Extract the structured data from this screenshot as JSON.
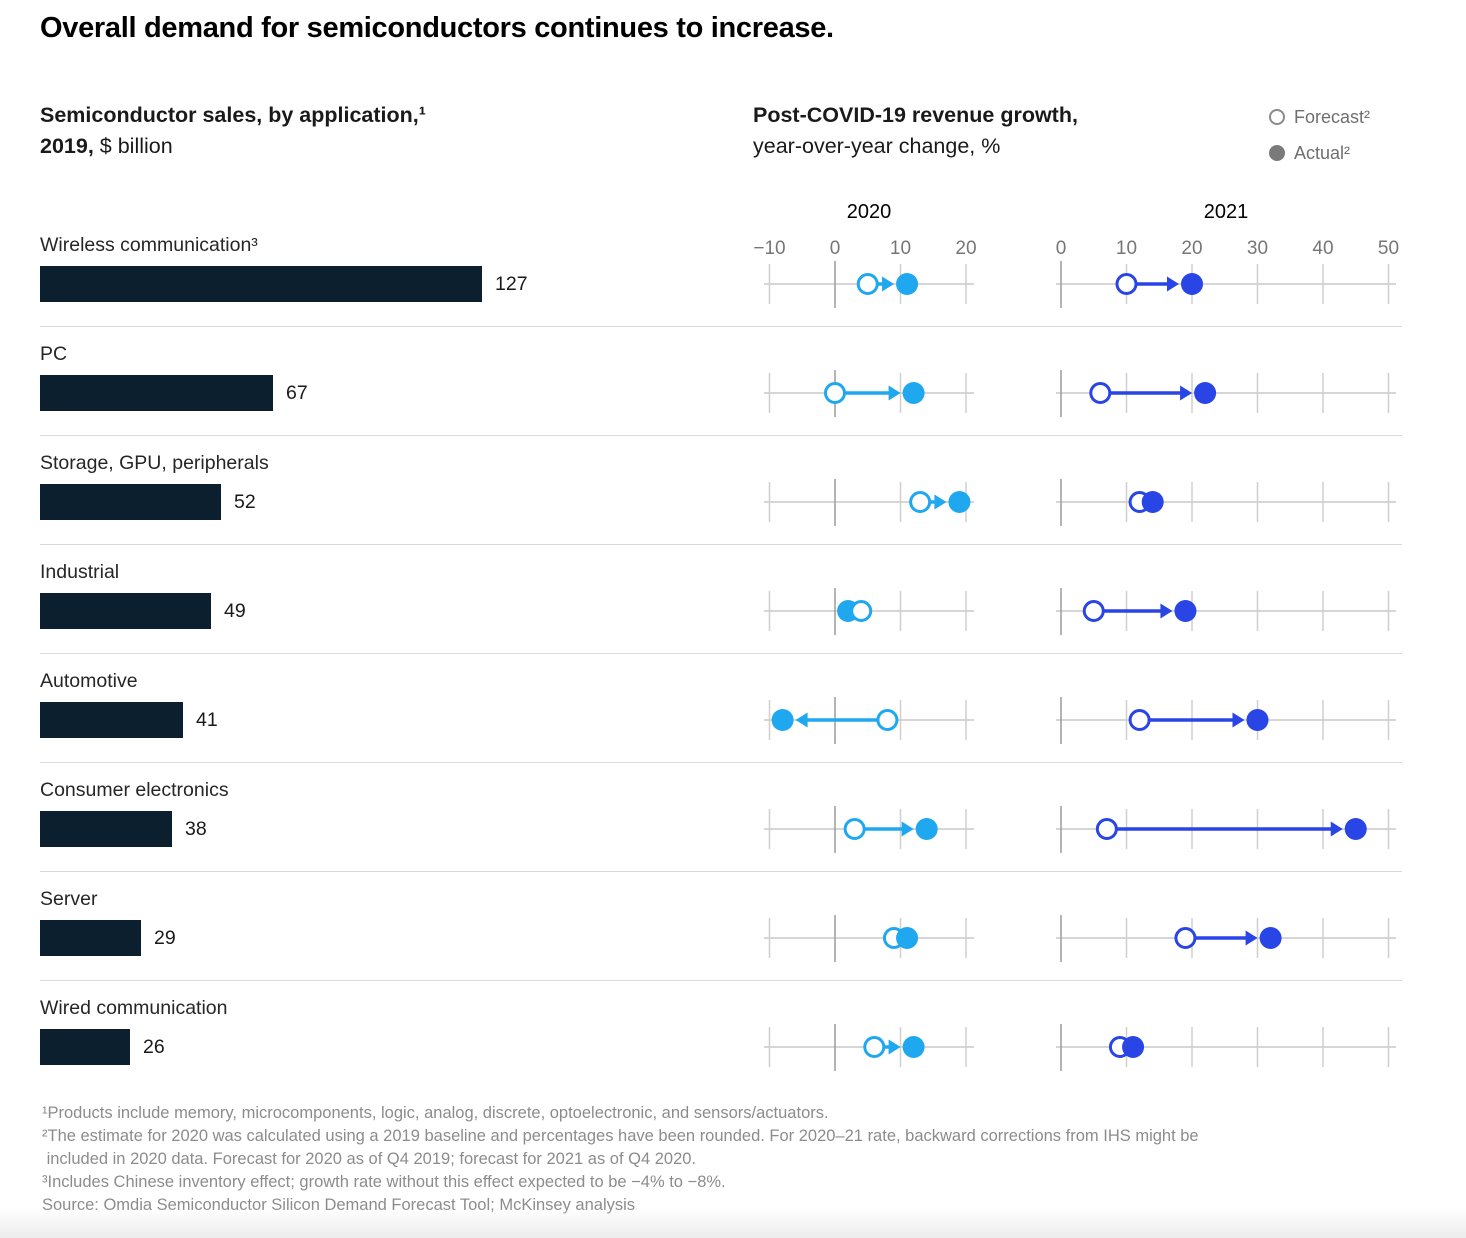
{
  "title": "Overall demand for semiconductors continues to increase.",
  "left_header": {
    "line1": "Semiconductor sales, by application,¹",
    "line2_bold": "2019,",
    "line2_rest": " $ billion"
  },
  "right_header": {
    "line1": "Post-COVID-19 revenue growth,",
    "line2": "year-over-year change, %"
  },
  "legend": {
    "forecast_label": "Forecast²",
    "actual_label": "Actual²"
  },
  "colors": {
    "bar_navy": "#0b1f2e",
    "blue_2020": "#1fa8f0",
    "blue_2021": "#2945e5",
    "legend_gray": "#7a7a7a",
    "axis_line_gray": "#c8c8c8",
    "tick_gray": "#cfcfcf",
    "zero_tick_gray": "#9b9b9b",
    "separator_gray": "#d9d9d9"
  },
  "chart_data": {
    "type": "bar+dumbbell",
    "title": "Overall demand for semiconductors continues to increase.",
    "bar_chart_title": "Semiconductor sales, by application, 2019, $ billion",
    "dumbbell_chart_title": "Post-COVID-19 revenue growth, year-over-year change, %",
    "categories": [
      "Wireless communication³",
      "PC",
      "Storage, GPU, peripherals",
      "Industrial",
      "Automotive",
      "Consumer electronics",
      "Server",
      "Wired communication"
    ],
    "bars": {
      "name": "2019 sales, $ billion",
      "values": [
        127,
        67,
        52,
        49,
        41,
        38,
        29,
        26
      ]
    },
    "panels": [
      {
        "year": "2020",
        "ticks": [
          -10,
          0,
          10,
          20
        ],
        "axis_range": [
          -10,
          20
        ],
        "series": [
          {
            "name": "Forecast",
            "values": [
              5,
              0,
              13,
              4,
              8,
              3,
              9,
              6
            ]
          },
          {
            "name": "Actual",
            "values": [
              11,
              12,
              19,
              2,
              -8,
              14,
              11,
              12
            ]
          }
        ]
      },
      {
        "year": "2021",
        "ticks": [
          0,
          10,
          20,
          30,
          40,
          50
        ],
        "axis_range": [
          0,
          50
        ],
        "series": [
          {
            "name": "Forecast",
            "values": [
              10,
              6,
              12,
              5,
              12,
              7,
              19,
              9
            ]
          },
          {
            "name": "Actual",
            "values": [
              20,
              22,
              14,
              19,
              30,
              45,
              32,
              11
            ]
          }
        ]
      }
    ],
    "legend_entries": [
      "Forecast²",
      "Actual²"
    ],
    "legend_position": "top-right",
    "grid": "vertical-ticks-per-row"
  },
  "footnotes": [
    "¹Products include memory, microcomponents, logic, analog, discrete, optoelectronic, and sensors/actuators.",
    "²The estimate for 2020 was calculated using a 2019 baseline and percentages have been rounded. For 2020–21 rate, backward corrections from IHS might be",
    " included in 2020 data. Forecast for 2020 as of Q4 2019; forecast for 2021 as of Q4 2020.",
    "³Includes Chinese inventory effect; growth rate without this effect expected to be −4% to −8%.",
    "Source: Omdia Semiconductor Silicon Demand Forecast Tool; McKinsey analysis"
  ]
}
